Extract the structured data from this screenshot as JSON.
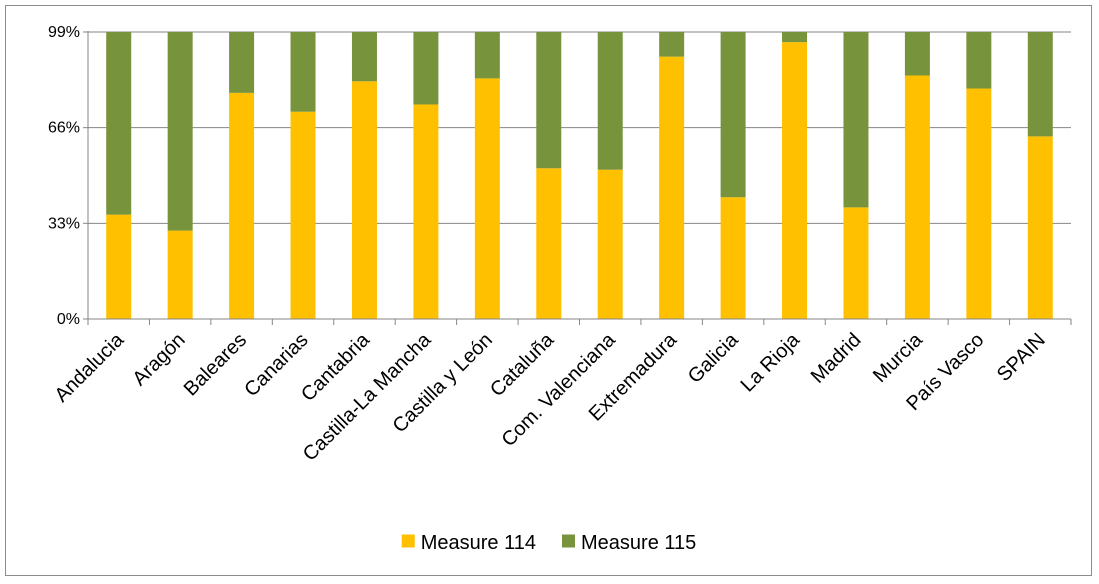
{
  "chart_data": {
    "type": "bar",
    "stacked": true,
    "categories": [
      "Andalucia",
      "Aragón",
      "Baleares",
      "Canarias",
      "Cantabria",
      "Castilla-La Mancha",
      "Castilla y León",
      "Cataluña",
      "Com. Valenciana",
      "Extremadura",
      "Galicia",
      "La Rioja",
      "Madrid",
      "Murcia",
      "País Vasco",
      "SPAIN"
    ],
    "series": [
      {
        "name": "Measure 114",
        "color": "#FFC000",
        "values": [
          36,
          30.5,
          78,
          71.5,
          82,
          74,
          83,
          52,
          51.5,
          90.5,
          42,
          95.5,
          38.5,
          84,
          79.5,
          63
        ]
      },
      {
        "name": "Measure 115",
        "color": "#77933C",
        "values": [
          63,
          68.5,
          21,
          27.5,
          17,
          25,
          16,
          47,
          47.5,
          8.5,
          57,
          3.5,
          60.5,
          15,
          19.5,
          36
        ]
      }
    ],
    "yticks": [
      "0%",
      "33%",
      "66%",
      "99%"
    ],
    "ytick_values": [
      0,
      33,
      66,
      99
    ],
    "ylim": [
      0,
      99
    ],
    "title": "",
    "xlabel": "",
    "ylabel": "",
    "grid": true,
    "legend": "bottom"
  }
}
